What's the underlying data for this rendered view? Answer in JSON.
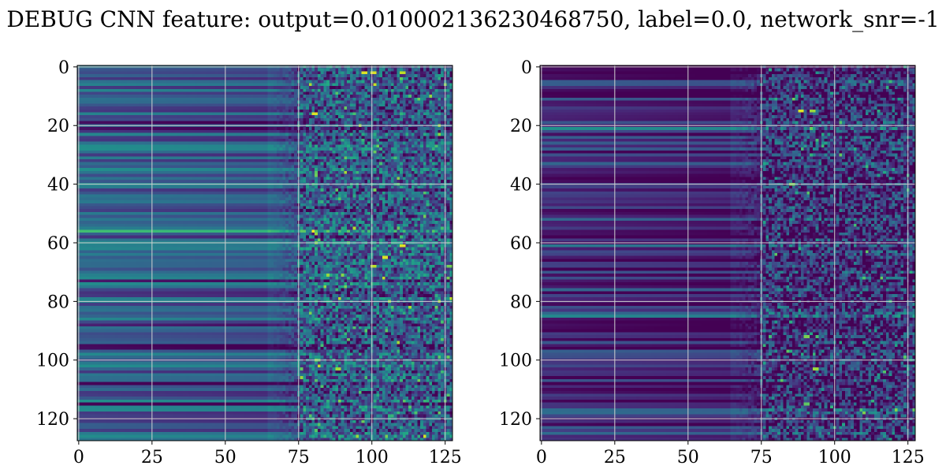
{
  "title": "DEBUG CNN feature: output=0.010002136230468750, label=0.0, network_snr=-1",
  "chart_data": [
    {
      "type": "heatmap",
      "colormap": "viridis",
      "grid": true,
      "rows": 128,
      "cols": 128,
      "xlim": [
        0,
        127
      ],
      "ylim": [
        127,
        0
      ],
      "xticks": [
        0,
        25,
        50,
        75,
        100,
        125
      ],
      "yticks": [
        0,
        20,
        40,
        60,
        80,
        100,
        120
      ],
      "xtick_labels": [
        "0",
        "25",
        "50",
        "75",
        "100",
        "125"
      ],
      "ytick_labels": [
        "0",
        "20",
        "40",
        "60",
        "80",
        "100",
        "120"
      ],
      "smooth_until_col": 75,
      "noisy_from_col": 75,
      "base_level": 0.32,
      "hot_spots": [
        {
          "row": 2,
          "col": 97,
          "value": 0.95
        },
        {
          "row": 2,
          "col": 100,
          "value": 0.95
        },
        {
          "row": 2,
          "col": 110,
          "value": 0.9
        },
        {
          "row": 16,
          "col": 80,
          "value": 0.95
        },
        {
          "row": 61,
          "col": 110,
          "value": 0.95
        },
        {
          "row": 65,
          "col": 104,
          "value": 0.95
        },
        {
          "row": 68,
          "col": 100,
          "value": 0.9
        },
        {
          "row": 103,
          "col": 88,
          "value": 0.85
        }
      ]
    },
    {
      "type": "heatmap",
      "colormap": "viridis",
      "grid": true,
      "rows": 128,
      "cols": 128,
      "xlim": [
        0,
        127
      ],
      "ylim": [
        127,
        0
      ],
      "xticks": [
        0,
        25,
        50,
        75,
        100,
        125
      ],
      "yticks": [
        0,
        20,
        40,
        60,
        80,
        100,
        120
      ],
      "xtick_labels": [
        "0",
        "25",
        "50",
        "75",
        "100",
        "125"
      ],
      "ytick_labels": [
        "0",
        "20",
        "40",
        "60",
        "80",
        "100",
        "120"
      ],
      "smooth_until_col": 75,
      "noisy_from_col": 75,
      "base_level": 0.18,
      "hot_spots": [
        {
          "row": 15,
          "col": 88,
          "value": 0.95
        },
        {
          "row": 15,
          "col": 92,
          "value": 0.85
        },
        {
          "row": 40,
          "col": 85,
          "value": 0.8
        },
        {
          "row": 92,
          "col": 90,
          "value": 0.8
        },
        {
          "row": 103,
          "col": 93,
          "value": 0.85
        },
        {
          "row": 115,
          "col": 90,
          "value": 0.75
        }
      ]
    }
  ]
}
